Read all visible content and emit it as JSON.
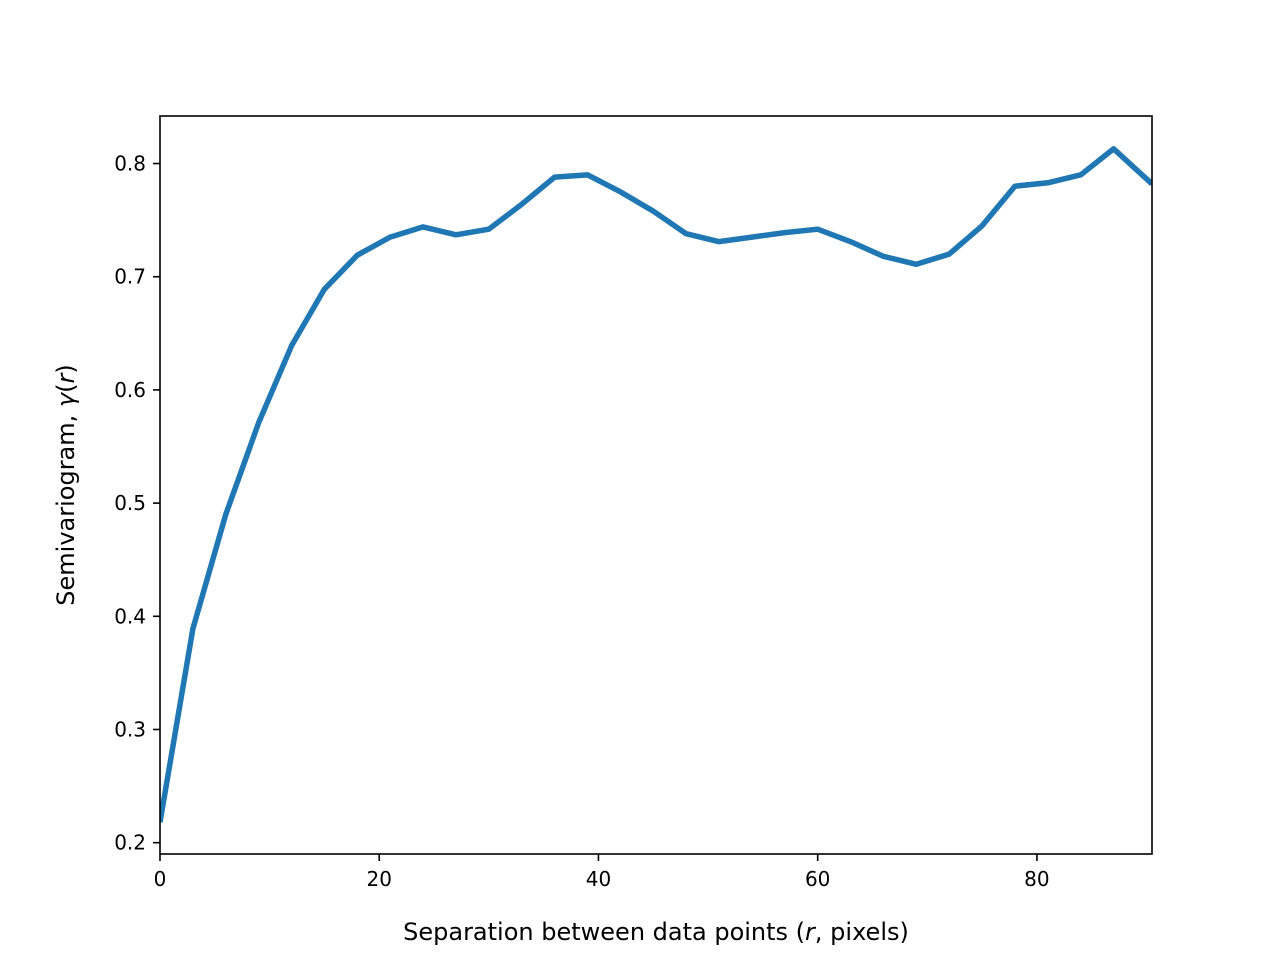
{
  "chart_data": {
    "type": "line",
    "title": "",
    "xlabel": {
      "before": "Separation between data points (",
      "italic": "r",
      "after": ", pixels)"
    },
    "ylabel": {
      "before": "Semivariogram, ",
      "italic": "γ",
      "mid": "(",
      "italic2": "r",
      "after": ")"
    },
    "xlim": [
      0,
      90.5
    ],
    "ylim": [
      0.19,
      0.842
    ],
    "xticks": [
      0,
      20,
      40,
      60,
      80
    ],
    "yticks": [
      0.2,
      0.3,
      0.4,
      0.5,
      0.6,
      0.7,
      0.8
    ],
    "grid": false,
    "series": [
      {
        "color": "#1f77b4",
        "x": [
          0,
          3,
          6,
          9,
          12,
          15,
          18,
          21,
          24,
          27,
          30,
          33,
          36,
          39,
          42,
          45,
          48,
          51,
          54,
          57,
          60,
          63,
          66,
          69,
          72,
          75,
          78,
          81,
          84,
          87,
          90.5
        ],
        "y": [
          0.218,
          0.389,
          0.49,
          0.571,
          0.639,
          0.689,
          0.719,
          0.735,
          0.744,
          0.737,
          0.742,
          0.764,
          0.788,
          0.79,
          0.775,
          0.758,
          0.738,
          0.731,
          0.735,
          0.739,
          0.742,
          0.731,
          0.718,
          0.711,
          0.72,
          0.745,
          0.78,
          0.783,
          0.79,
          0.813,
          0.782
        ]
      }
    ]
  }
}
